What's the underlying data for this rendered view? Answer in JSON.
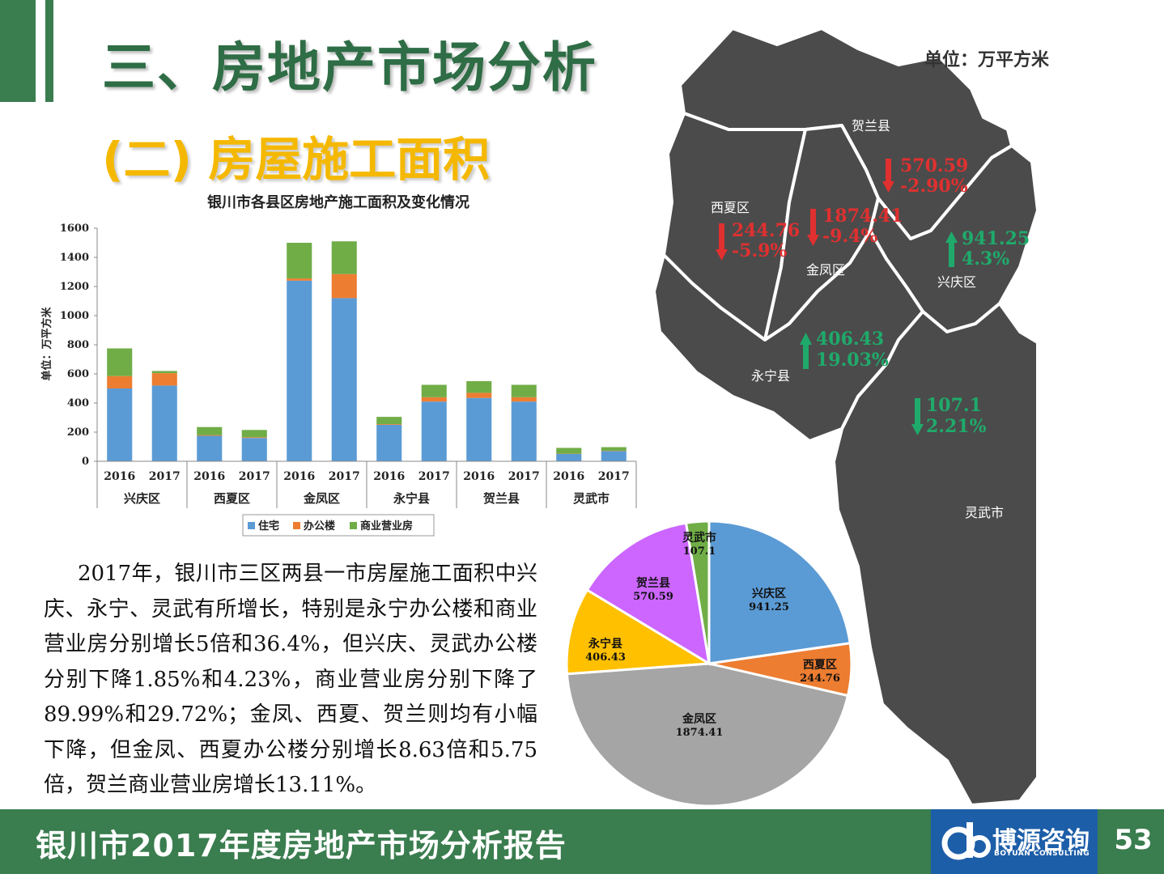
{
  "header": {
    "title": "三、房地产市场分析",
    "subtitle": "(二) 房屋施工面积",
    "unit": "单位：万平方米"
  },
  "paragraph": "2017年，银川市三区两县一市房屋施工面积中兴庆、永宁、灵武有所增长，特别是永宁办公楼和商业营业房分别增长5倍和36.4%，但兴庆、灵武办公楼分别下降1.85%和4.23%，商业营业房分别下降了89.99%和29.72%；金凤、西夏、贺兰则均有小幅下降，但金凤、西夏办公楼分别增长8.63倍和5.75倍，贺兰商业营业房增长13.11%。",
  "footer": {
    "title": "银川市2017年度房地产市场分析报告",
    "logo_cn": "博源咨询",
    "logo_en": "BOYUAN CONSULTING",
    "page_number": "53"
  },
  "colors": {
    "residential": "#5b9bd5",
    "office": "#ed7d31",
    "commercial": "#70ad47",
    "map_fill": "#4b4b4b",
    "down": "#e03030",
    "up": "#1faa6b"
  },
  "map": {
    "regions": [
      {
        "name": "贺兰县",
        "value": "570.59",
        "change": "-2.90%",
        "direction": "down"
      },
      {
        "name": "西夏区",
        "value": "244.76",
        "change": "-5.9%",
        "direction": "down"
      },
      {
        "name": "金凤区",
        "value": "1874.41",
        "change": "-9.4%",
        "direction": "down"
      },
      {
        "name": "兴庆区",
        "value": "941.25",
        "change": "4.3%",
        "direction": "up"
      },
      {
        "name": "永宁县",
        "value": "406.43",
        "change": "19.03%",
        "direction": "up"
      },
      {
        "name": "灵武市",
        "value": "107.1",
        "change": "2.21%",
        "direction": "up"
      }
    ]
  },
  "chart_data": [
    {
      "type": "bar",
      "stacked": true,
      "title": "银川市各县区房地产施工面积及变化情况",
      "ylabel": "单位：万平方米",
      "ylim": [
        0,
        1600
      ],
      "yticks": [
        0,
        200,
        400,
        600,
        800,
        1000,
        1200,
        1400,
        1600
      ],
      "groups": [
        "兴庆区",
        "西夏区",
        "金凤区",
        "永宁县",
        "贺兰县",
        "灵武市"
      ],
      "categories": [
        "2016",
        "2017",
        "2016",
        "2017",
        "2016",
        "2017",
        "2016",
        "2017",
        "2016",
        "2017",
        "2016",
        "2017"
      ],
      "series": [
        {
          "name": "住宅",
          "values": [
            500,
            520,
            175,
            160,
            1240,
            1120,
            250,
            410,
            435,
            410,
            50,
            70
          ]
        },
        {
          "name": "办公楼",
          "values": [
            85,
            85,
            5,
            5,
            15,
            165,
            5,
            30,
            35,
            30,
            2,
            2
          ]
        },
        {
          "name": "商业营业房",
          "values": [
            190,
            15,
            55,
            50,
            245,
            225,
            50,
            85,
            80,
            85,
            40,
            25
          ]
        }
      ],
      "legend_position": "bottom",
      "grid": false
    },
    {
      "type": "pie",
      "labels": [
        "兴庆区",
        "西夏区",
        "金凤区",
        "永宁县",
        "贺兰县",
        "灵武市"
      ],
      "values": [
        941.25,
        244.76,
        1874.41,
        406.43,
        570.59,
        107.1
      ],
      "value_labels": [
        "941.25",
        "244.76",
        "1874.41",
        "406.43",
        "570.59",
        "107.1"
      ],
      "colors": [
        "#5b9bd5",
        "#ed7d31",
        "#a5a5a5",
        "#ffc000",
        "#cc66ff",
        "#70ad47"
      ]
    }
  ]
}
